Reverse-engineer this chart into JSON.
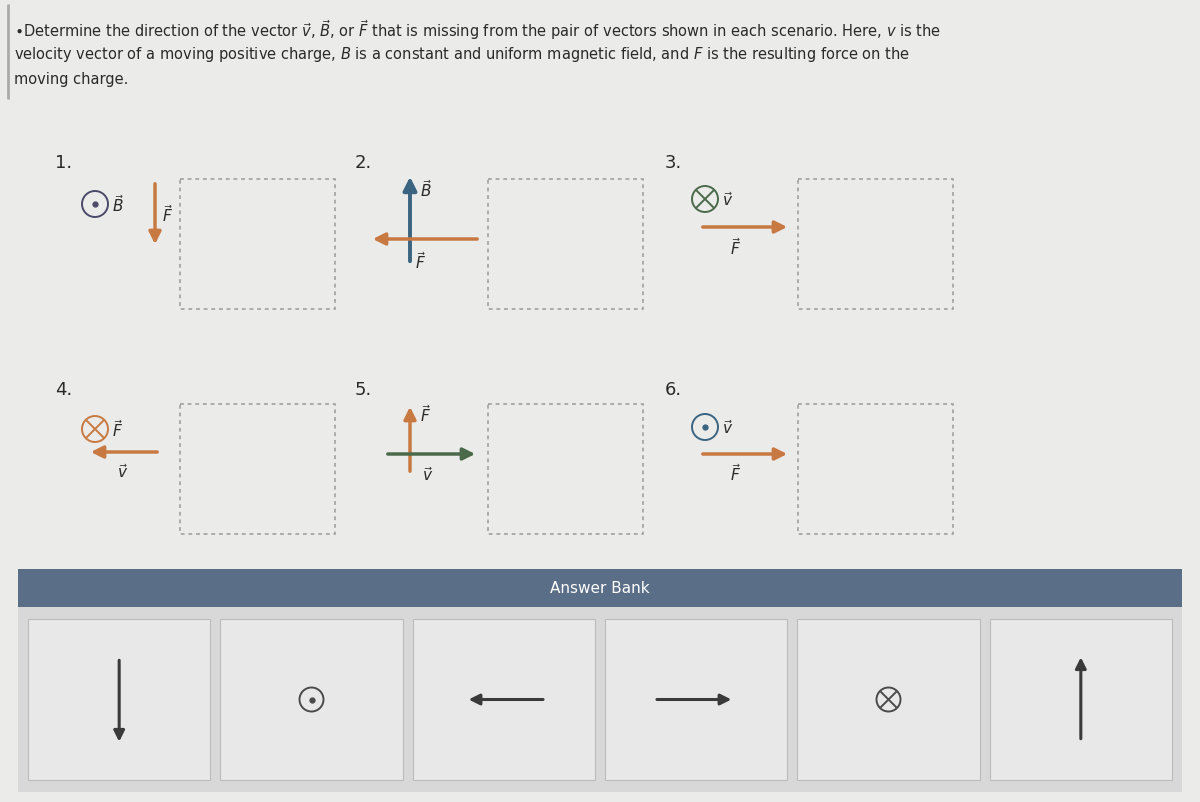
{
  "bg_color": "#ebebea",
  "answer_bank_bg": "#5a6e87",
  "answer_bank_lower_bg": "#dcdcdc",
  "arrow_orange": "#c87941",
  "arrow_blue": "#3a6480",
  "arrow_dark": "#3a3a3a",
  "text_dark": "#2a2a2a",
  "circle_dark": "#4a4a6a",
  "dashed_color": "#999999"
}
